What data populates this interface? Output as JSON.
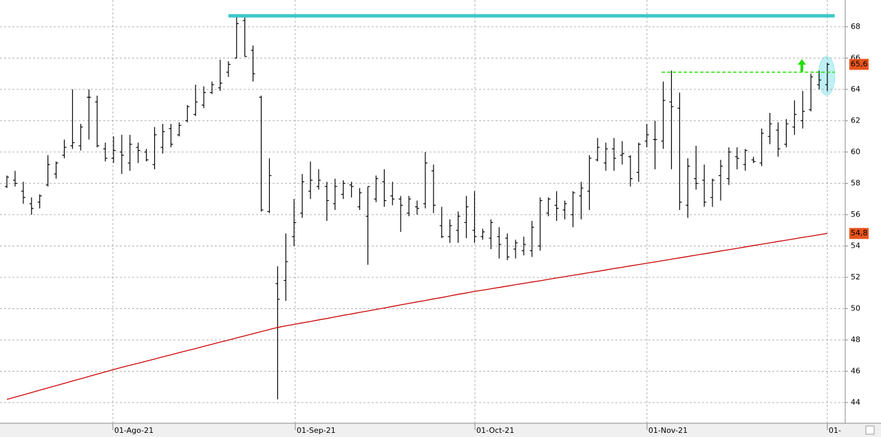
{
  "chart_data": {
    "type": "ohlc",
    "xlim": [
      -0.84,
      102.18
    ],
    "ylim": [
      42.68,
      69.71
    ],
    "yticks": [
      44,
      46,
      48,
      50,
      52,
      54,
      56,
      58,
      60,
      62,
      64,
      66,
      68
    ],
    "xticks": [
      {
        "value": 12.92,
        "label": "01-Ago-21"
      },
      {
        "value": 35.15,
        "label": "01-Sep-21"
      },
      {
        "value": 57.05,
        "label": "01-Oct-21"
      },
      {
        "value": 78.02,
        "label": "01-Nov-21"
      },
      {
        "value": 100.0,
        "label": "01-"
      }
    ],
    "grid": true,
    "color": "#000000",
    "high": [
      58.5,
      58.8,
      58.1,
      57.1,
      57.3,
      59.8,
      59.4,
      60.8,
      64,
      61.8,
      64,
      63.6,
      60.6,
      61,
      61.1,
      61.1,
      60.6,
      60.2,
      61.6,
      61.8,
      61.8,
      61.9,
      63,
      64.3,
      64.2,
      64.5,
      65.9,
      65.8,
      68.8,
      68.7,
      66.8,
      63.6,
      59.6,
      52.7,
      54.8,
      57,
      58.6,
      59.4,
      58.9,
      58.1,
      58.3,
      58.2,
      58.1,
      57.7,
      57.8,
      58.5,
      58.9,
      58.1,
      57.2,
      57.2,
      56.9,
      60,
      59.2,
      56.5,
      55.7,
      56.2,
      57.2,
      57.5,
      55.1,
      55.7,
      55.2,
      54.8,
      54.4,
      54.6,
      55.6,
      57.1,
      57.1,
      57.5,
      56.9,
      57.5,
      58.1,
      59.8,
      60.9,
      60.6,
      60.9,
      60.7,
      59.8,
      60.6,
      61.8,
      62,
      64.5,
      65.2,
      63.8,
      59.6,
      60.4,
      59.2,
      58.3,
      59.5,
      60.3,
      60.3,
      60.2,
      59.7,
      61.5,
      62.5,
      61.9,
      62.1,
      63.3,
      63.9,
      65,
      65.2,
      65.7
    ],
    "low": [
      57.7,
      57.8,
      56.7,
      56,
      56.4,
      57.8,
      58.3,
      59.6,
      60.2,
      60.1,
      60.8,
      60.3,
      59.4,
      59.3,
      58.6,
      58.8,
      59.3,
      59.4,
      58.9,
      59.9,
      60.3,
      61,
      61.9,
      62.3,
      62.8,
      63.7,
      63.9,
      64.8,
      66,
      66.1,
      64.5,
      56.2,
      56.1,
      44.2,
      50.5,
      54,
      55.8,
      57,
      57.6,
      55.6,
      56.3,
      57,
      57.1,
      56.3,
      52.8,
      56.8,
      56.5,
      56.6,
      54.9,
      55.9,
      56,
      56.4,
      56.1,
      54.5,
      54.2,
      54.2,
      54.5,
      54.2,
      54.4,
      53.8,
      53.2,
      53.1,
      53.2,
      53.4,
      53.3,
      53.7,
      55.9,
      55.6,
      55.7,
      55.2,
      55.7,
      56.3,
      59.4,
      58.8,
      58.8,
      59.2,
      57.8,
      58.1,
      60.3,
      58.9,
      60.2,
      58.9,
      56.3,
      55.8,
      57.6,
      56.5,
      56.5,
      56.9,
      57.9,
      58.9,
      58.8,
      59.3,
      59.1,
      60.5,
      59.7,
      60.3,
      61.1,
      61.5,
      62.6,
      64.0,
      63.9
    ],
    "open": [
      57.8,
      58.2,
      57.5,
      56.7,
      56.8,
      57.9,
      58.6,
      59.8,
      60.4,
      60.4,
      63.5,
      63.2,
      60.2,
      59.6,
      60,
      59.3,
      60.3,
      60,
      59.2,
      60.3,
      61.5,
      61.1,
      62,
      62.4,
      63,
      63.8,
      64.1,
      65.1,
      66,
      68.4,
      66.5,
      63.5,
      56.2,
      51.6,
      51.8,
      54.6,
      56.1,
      57.5,
      57.8,
      57.8,
      56.7,
      57.3,
      57.9,
      56.5,
      55.9,
      57,
      58.1,
      57.2,
      57,
      56.1,
      56.5,
      56.7,
      58.8,
      55.3,
      54.6,
      55,
      55.5,
      55,
      54.6,
      54.5,
      54.6,
      54.5,
      53.8,
      53.7,
      53.7,
      54,
      56.1,
      56.6,
      56.3,
      56,
      57.2,
      57.5,
      59.5,
      59.3,
      60.2,
      59.8,
      59.7,
      58.7,
      60.7,
      60.8,
      60.7,
      63.2,
      62.8,
      56.6,
      58.3,
      58.2,
      57.1,
      58.5,
      58.3,
      59.7,
      59.2,
      59.5,
      59.3,
      61.0,
      61.4,
      60.5,
      61.6,
      62,
      62.7,
      64.3,
      64.3
    ],
    "close": [
      58.4,
      58.0,
      57.1,
      56.4,
      57.2,
      59.2,
      59.3,
      60.3,
      60.6,
      61.6,
      63.5,
      60.4,
      59.6,
      60.1,
      59.8,
      60.5,
      60.1,
      59.5,
      61.1,
      61.3,
      60.5,
      61.7,
      62.9,
      63.2,
      63.8,
      64.3,
      64.4,
      65.6,
      68.2,
      66.1,
      65,
      56.3,
      58.5,
      50.6,
      53,
      55.5,
      58.1,
      58.2,
      58.2,
      56.9,
      57.8,
      58.0,
      57.8,
      57.4,
      57.8,
      58.3,
      56.9,
      57.0,
      56.6,
      57,
      56.4,
      59.3,
      56.6,
      54.6,
      55.3,
      55.9,
      56.5,
      54.6,
      54.9,
      55.5,
      54.1,
      53.3,
      54.2,
      54.1,
      55.2,
      56.9,
      57.0,
      56.4,
      56.7,
      57.4,
      57.7,
      59.6,
      60.3,
      60.2,
      59.6,
      59.9,
      58.3,
      60.5,
      61.1,
      60.8,
      63.3,
      62.9,
      56.8,
      59.1,
      58.0,
      56.8,
      58.2,
      59.1,
      60.0,
      59.6,
      60.1,
      59.4,
      61.2,
      61.8,
      60.2,
      61.8,
      62.4,
      62.6,
      64.8,
      64.6,
      65.6
    ],
    "moving_average": {
      "color": "#cc0000",
      "values": [
        44.2,
        44.35,
        44.49,
        44.64,
        44.79,
        44.94,
        45.08,
        45.23,
        45.38,
        45.52,
        45.67,
        45.82,
        45.96,
        46.11,
        46.25,
        46.38,
        46.51,
        46.65,
        46.78,
        46.92,
        47.05,
        47.19,
        47.32,
        47.45,
        47.59,
        47.72,
        47.86,
        47.99,
        48.13,
        48.26,
        48.4,
        48.53,
        48.67,
        48.8,
        48.9,
        48.99,
        49.09,
        49.18,
        49.28,
        49.37,
        49.47,
        49.57,
        49.66,
        49.76,
        49.85,
        49.95,
        50.04,
        50.14,
        50.24,
        50.33,
        50.43,
        50.52,
        50.62,
        50.71,
        50.81,
        50.91,
        51.0,
        51.1,
        51.18,
        51.27,
        51.35,
        51.44,
        51.53,
        51.61,
        51.7,
        51.78,
        51.87,
        51.96,
        52.04,
        52.13,
        52.21,
        52.3,
        52.38,
        52.47,
        52.56,
        52.64,
        52.73,
        52.81,
        52.9,
        52.98,
        53.07,
        53.16,
        53.24,
        53.33,
        53.42,
        53.5,
        53.59,
        53.68,
        53.76,
        53.85,
        53.94,
        54.03,
        54.11,
        54.2,
        54.29,
        54.37,
        54.46,
        54.55,
        54.63,
        54.72,
        54.8
      ]
    },
    "hlines": [
      {
        "value": 68.7,
        "from": 27.0,
        "to": 100.9,
        "color": "#3cc8c8",
        "dashed": false
      },
      {
        "value": 65.1,
        "from": 79.8,
        "to": 100.9,
        "color": "#22dd00",
        "dashed": true
      }
    ],
    "last_labels": [
      {
        "value": 65.6,
        "label": "65,6",
        "color": "#e8541c"
      },
      {
        "value": 54.8,
        "label": "54,8",
        "color": "#e8541c"
      }
    ]
  }
}
